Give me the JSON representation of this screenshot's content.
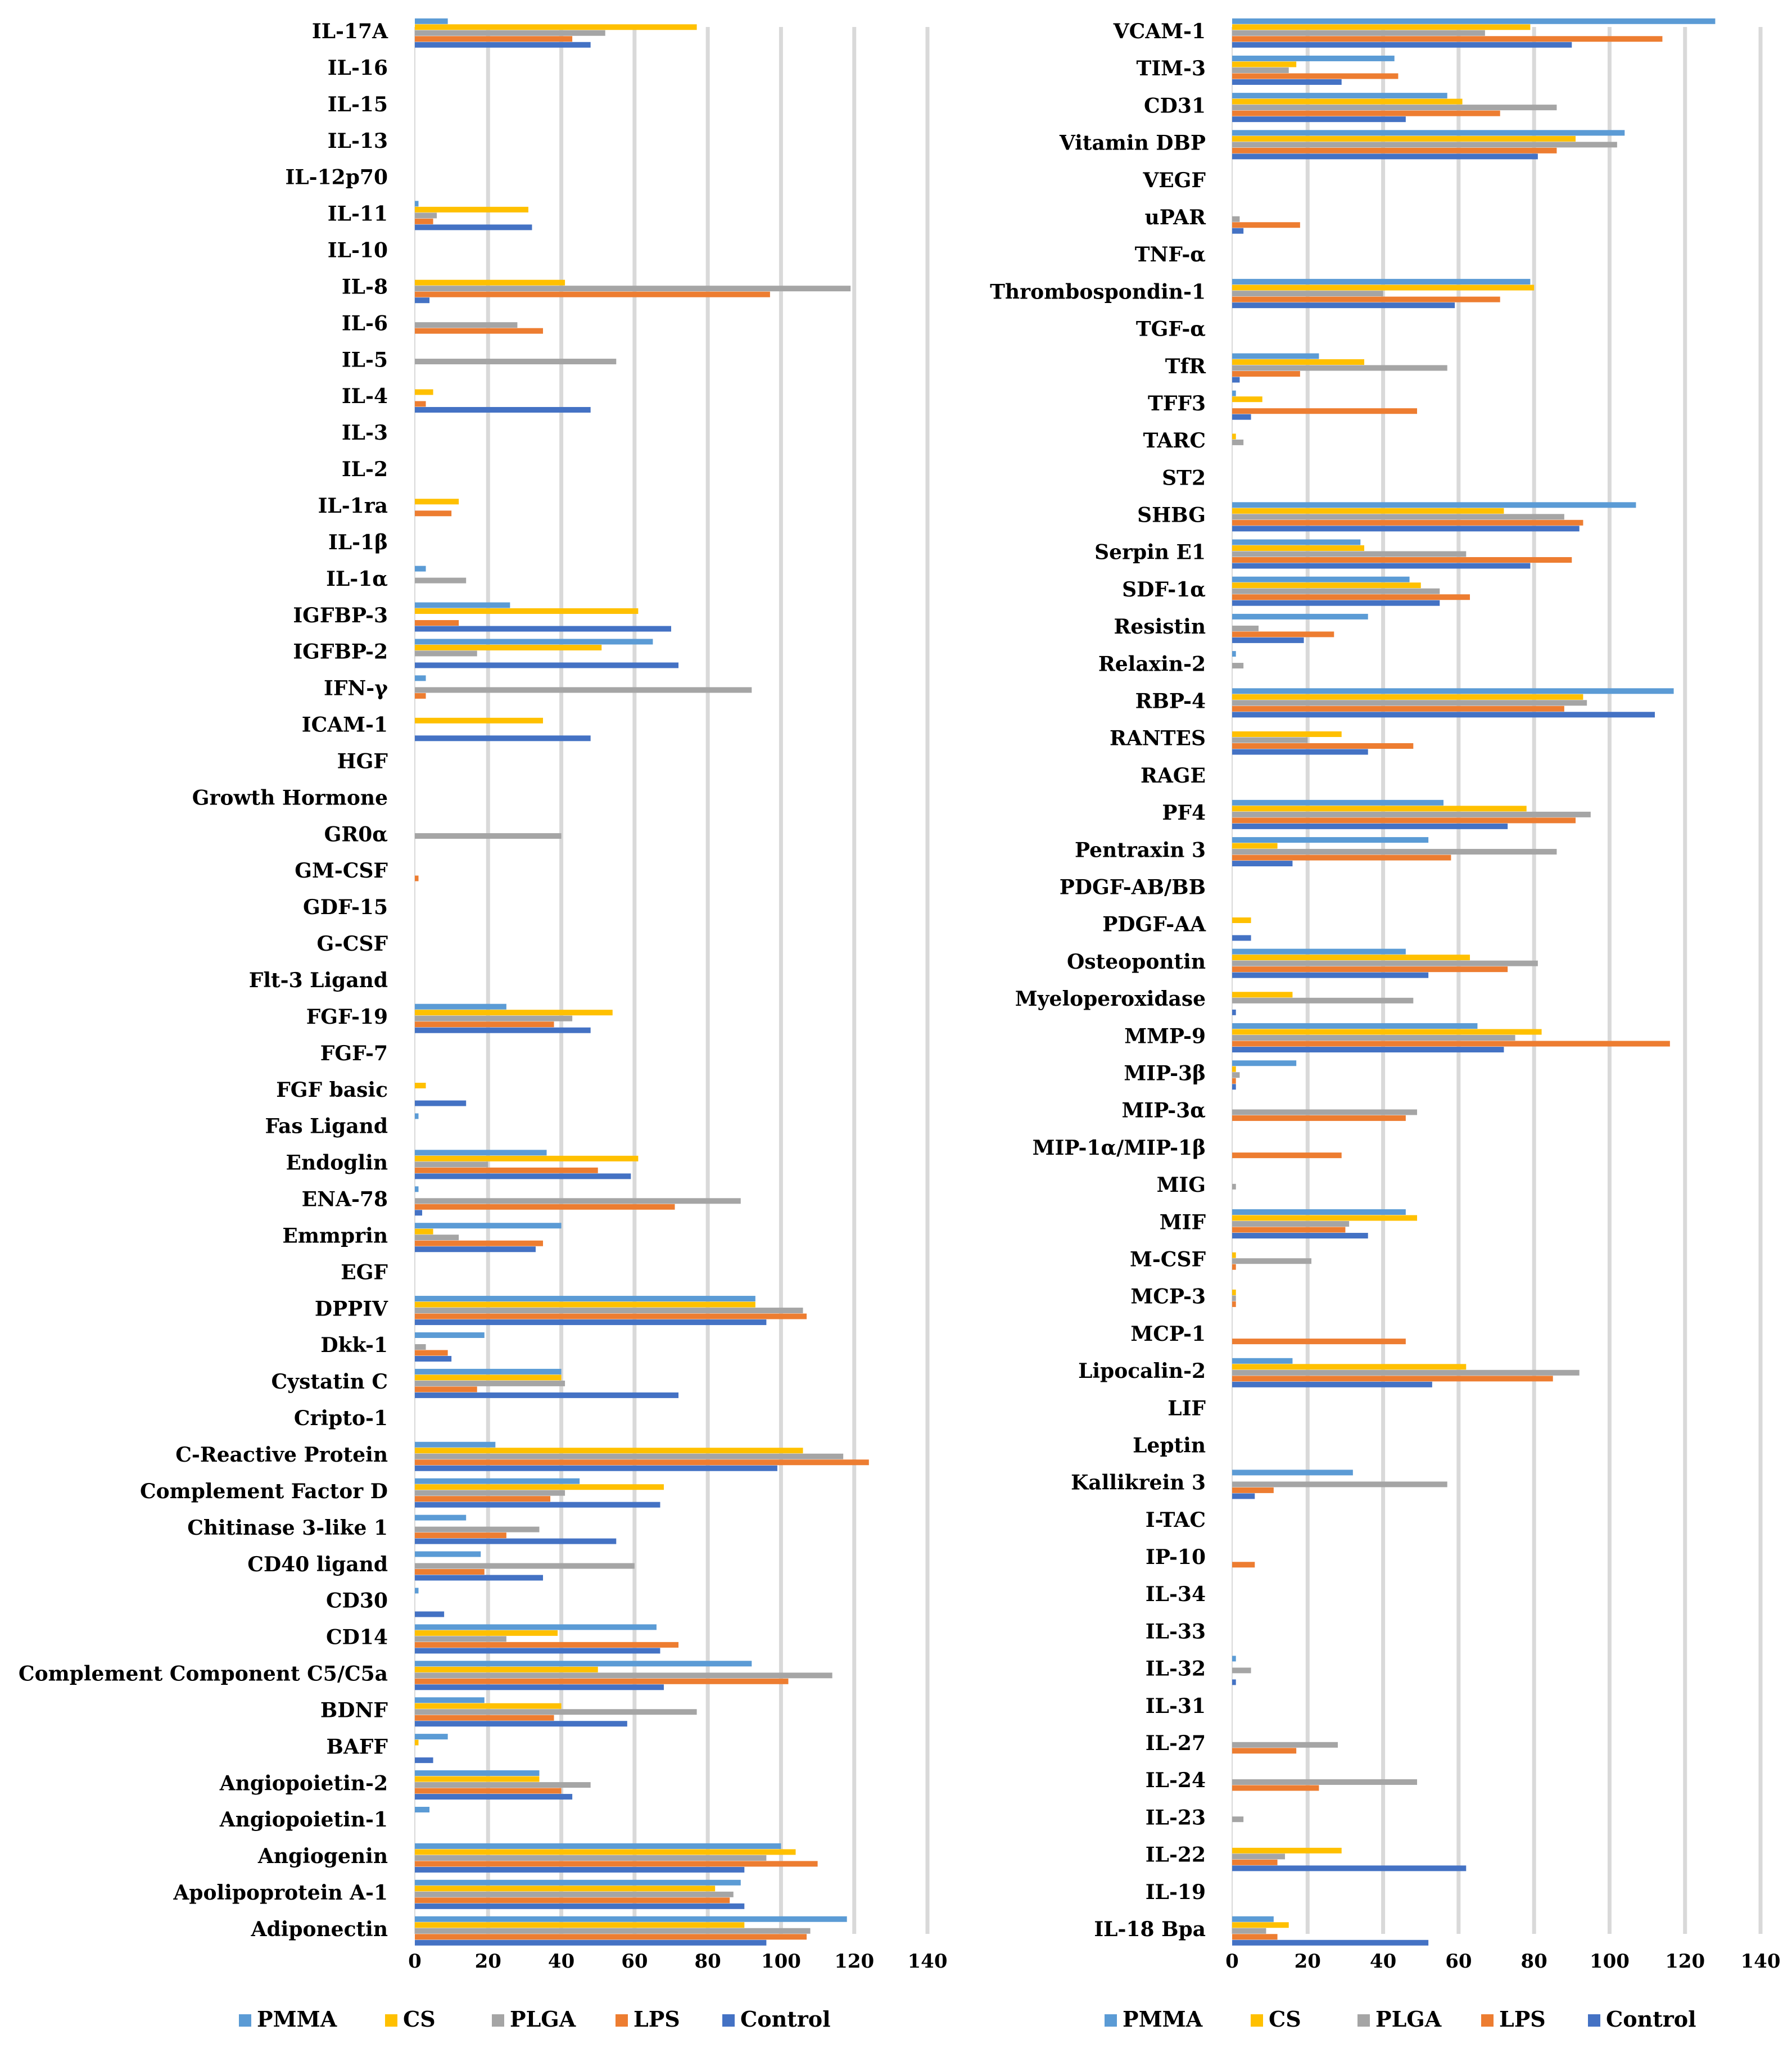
{
  "colors": {
    "PMMA": "#5b9bd5",
    "CS": "#ffc000",
    "PLGA": "#a5a5a5",
    "LPS": "#ed7d31",
    "Control": "#4472c4",
    "grid": "#d9d9d9"
  },
  "chart_data": [
    {
      "type": "bar",
      "orientation": "horizontal",
      "title": "",
      "xlabel": "",
      "ylabel": "",
      "xlim": [
        0,
        140
      ],
      "ticks": [
        "0",
        "20",
        "40",
        "60",
        "80",
        "100",
        "120",
        "140"
      ],
      "tick_values": [
        0,
        20,
        40,
        60,
        80,
        100,
        120,
        140
      ],
      "grid": true,
      "legend": "bottom",
      "categories": [
        "IL-17A",
        "IL-16",
        "IL-15",
        "IL-13",
        "IL-12p70",
        "IL-11",
        "IL-10",
        "IL-8",
        "IL-6",
        "IL-5",
        "IL-4",
        "IL-3",
        "IL-2",
        "IL-1ra",
        "IL-1β",
        "IL-1α",
        "IGFBP-3",
        "IGFBP-2",
        "IFN-γ",
        "ICAM-1",
        "HGF",
        "Growth Hormone",
        "GR0α",
        "GM-CSF",
        "GDF-15",
        "G-CSF",
        "Flt-3 Ligand",
        "FGF-19",
        "FGF-7",
        "FGF basic",
        "Fas Ligand",
        "Endoglin",
        "ENA-78",
        "Emmprin",
        "EGF",
        "DPPIV",
        "Dkk-1",
        "Cystatin C",
        "Cripto-1",
        "C-Reactive Protein",
        "Complement Factor D",
        "Chitinase 3-like 1",
        "CD40 ligand",
        "CD30",
        "CD14",
        "Complement Component C5/C5a",
        "BDNF",
        "BAFF",
        "Angiopoietin-2",
        "Angiopoietin-1",
        "Angiogenin",
        "Apolipoprotein A-1",
        "Adiponectin"
      ],
      "series": [
        {
          "name": "PMMA",
          "values": [
            9,
            0,
            0,
            0,
            0,
            1,
            0,
            0,
            0,
            0,
            0,
            0,
            0,
            0,
            0,
            3,
            26,
            65,
            3,
            0,
            0,
            0,
            0,
            0,
            0,
            0,
            0,
            25,
            0,
            0,
            1,
            36,
            1,
            40,
            0,
            93,
            19,
            40,
            0,
            22,
            45,
            14,
            18,
            1,
            66,
            92,
            19,
            9,
            34,
            4,
            100,
            89,
            118
          ]
        },
        {
          "name": "CS",
          "values": [
            77,
            0,
            0,
            0,
            0,
            31,
            0,
            41,
            0,
            0,
            5,
            0,
            0,
            12,
            0,
            0,
            61,
            51,
            0,
            35,
            0,
            0,
            0,
            0,
            0,
            0,
            0,
            54,
            0,
            3,
            0,
            61,
            0,
            5,
            0,
            93,
            0,
            40,
            0,
            106,
            68,
            0,
            0,
            0,
            39,
            50,
            40,
            1,
            34,
            0,
            104,
            82,
            90
          ]
        },
        {
          "name": "PLGA",
          "values": [
            52,
            0,
            0,
            0,
            0,
            6,
            0,
            119,
            28,
            55,
            0,
            0,
            0,
            0,
            0,
            14,
            0,
            17,
            92,
            0,
            0,
            0,
            40,
            0,
            0,
            0,
            0,
            43,
            0,
            0,
            0,
            20,
            89,
            12,
            0,
            106,
            3,
            41,
            0,
            117,
            41,
            34,
            60,
            0,
            25,
            114,
            77,
            0,
            48,
            0,
            96,
            87,
            108
          ]
        },
        {
          "name": "LPS",
          "values": [
            43,
            0,
            0,
            0,
            0,
            5,
            0,
            97,
            35,
            0,
            3,
            0,
            0,
            10,
            0,
            0,
            12,
            0,
            3,
            0,
            0,
            0,
            0,
            1,
            0,
            0,
            0,
            38,
            0,
            0,
            0,
            50,
            71,
            35,
            0,
            107,
            9,
            17,
            0,
            124,
            37,
            25,
            19,
            0,
            72,
            102,
            38,
            0,
            40,
            0,
            110,
            86,
            107
          ]
        },
        {
          "name": "Control",
          "values": [
            48,
            0,
            0,
            0,
            0,
            32,
            0,
            4,
            0,
            0,
            48,
            0,
            0,
            0,
            0,
            0,
            70,
            72,
            0,
            48,
            0,
            0,
            0,
            0,
            0,
            0,
            0,
            48,
            0,
            14,
            0,
            59,
            2,
            33,
            0,
            96,
            10,
            72,
            0,
            99,
            67,
            55,
            35,
            8,
            67,
            68,
            58,
            5,
            43,
            0,
            90,
            90,
            96
          ]
        }
      ]
    },
    {
      "type": "bar",
      "orientation": "horizontal",
      "title": "",
      "xlabel": "",
      "ylabel": "",
      "xlim": [
        0,
        140
      ],
      "ticks": [
        "0",
        "20",
        "40",
        "60",
        "80",
        "100",
        "120",
        "140"
      ],
      "tick_values": [
        0,
        20,
        40,
        60,
        80,
        100,
        120,
        140
      ],
      "grid": true,
      "legend": "bottom",
      "categories": [
        "VCAM-1",
        "TIM-3",
        "CD31",
        "Vitamin DBP",
        "VEGF",
        "uPAR",
        "TNF-α",
        "Thrombospondin-1",
        "TGF-α",
        "TfR",
        "TFF3",
        "TARC",
        "ST2",
        "SHBG",
        "Serpin E1",
        "SDF-1α",
        "Resistin",
        "Relaxin-2",
        "RBP-4",
        "RANTES",
        "RAGE",
        "PF4",
        "Pentraxin 3",
        "PDGF-AB/BB",
        "PDGF-AA",
        "Osteopontin",
        "Myeloperoxidase",
        "MMP-9",
        "MIP-3β",
        "MIP-3α",
        "MIP-1α/MIP-1β",
        "MIG",
        "MIF",
        "M-CSF",
        "MCP-3",
        "MCP-1",
        "Lipocalin-2",
        "LIF",
        "Leptin",
        "Kallikrein 3",
        "I-TAC",
        "IP-10",
        "IL-34",
        "IL-33",
        "IL-32",
        "IL-31",
        "IL-27",
        "IL-24",
        "IL-23",
        "IL-22",
        "IL-19",
        "IL-18 Bpa"
      ],
      "series": [
        {
          "name": "PMMA",
          "values": [
            128,
            43,
            57,
            104,
            0,
            0,
            0,
            79,
            0,
            23,
            1,
            0,
            0,
            107,
            34,
            47,
            36,
            1,
            117,
            0,
            0,
            56,
            52,
            0,
            0,
            46,
            0,
            65,
            17,
            0,
            0,
            0,
            46,
            0,
            0,
            0,
            16,
            0,
            0,
            32,
            0,
            0,
            0,
            0,
            1,
            0,
            0,
            0,
            0,
            0,
            0,
            11
          ]
        },
        {
          "name": "CS",
          "values": [
            79,
            17,
            61,
            91,
            0,
            0,
            0,
            80,
            0,
            35,
            8,
            1,
            0,
            72,
            35,
            50,
            0,
            0,
            93,
            29,
            0,
            78,
            12,
            0,
            5,
            63,
            16,
            82,
            1,
            0,
            0,
            0,
            49,
            1,
            1,
            0,
            62,
            0,
            0,
            0,
            0,
            0,
            0,
            0,
            0,
            0,
            0,
            0,
            0,
            29,
            0,
            15
          ]
        },
        {
          "name": "PLGA",
          "values": [
            67,
            15,
            86,
            102,
            0,
            2,
            0,
            40,
            0,
            57,
            0,
            3,
            0,
            88,
            62,
            55,
            7,
            3,
            94,
            20,
            0,
            95,
            86,
            0,
            0,
            81,
            48,
            75,
            2,
            49,
            0,
            1,
            31,
            21,
            1,
            0,
            92,
            0,
            0,
            57,
            0,
            0,
            0,
            0,
            5,
            0,
            28,
            49,
            3,
            14,
            0,
            9
          ]
        },
        {
          "name": "LPS",
          "values": [
            114,
            44,
            71,
            86,
            0,
            18,
            0,
            71,
            0,
            18,
            49,
            0,
            0,
            93,
            90,
            63,
            27,
            0,
            88,
            48,
            0,
            91,
            58,
            0,
            0,
            73,
            0,
            116,
            1,
            46,
            29,
            0,
            30,
            1,
            1,
            46,
            85,
            0,
            0,
            11,
            0,
            6,
            0,
            0,
            0,
            0,
            17,
            23,
            0,
            12,
            0,
            12
          ]
        },
        {
          "name": "Control",
          "values": [
            90,
            29,
            46,
            81,
            0,
            3,
            0,
            59,
            0,
            2,
            5,
            0,
            0,
            92,
            79,
            55,
            19,
            0,
            112,
            36,
            0,
            73,
            16,
            0,
            5,
            52,
            1,
            72,
            1,
            0,
            0,
            0,
            36,
            0,
            0,
            0,
            53,
            0,
            0,
            6,
            0,
            0,
            0,
            0,
            1,
            0,
            0,
            0,
            0,
            62,
            0,
            52
          ]
        }
      ]
    }
  ],
  "legend": {
    "items": [
      "PMMA",
      "CS",
      "PLGA",
      "LPS",
      "Control"
    ]
  }
}
